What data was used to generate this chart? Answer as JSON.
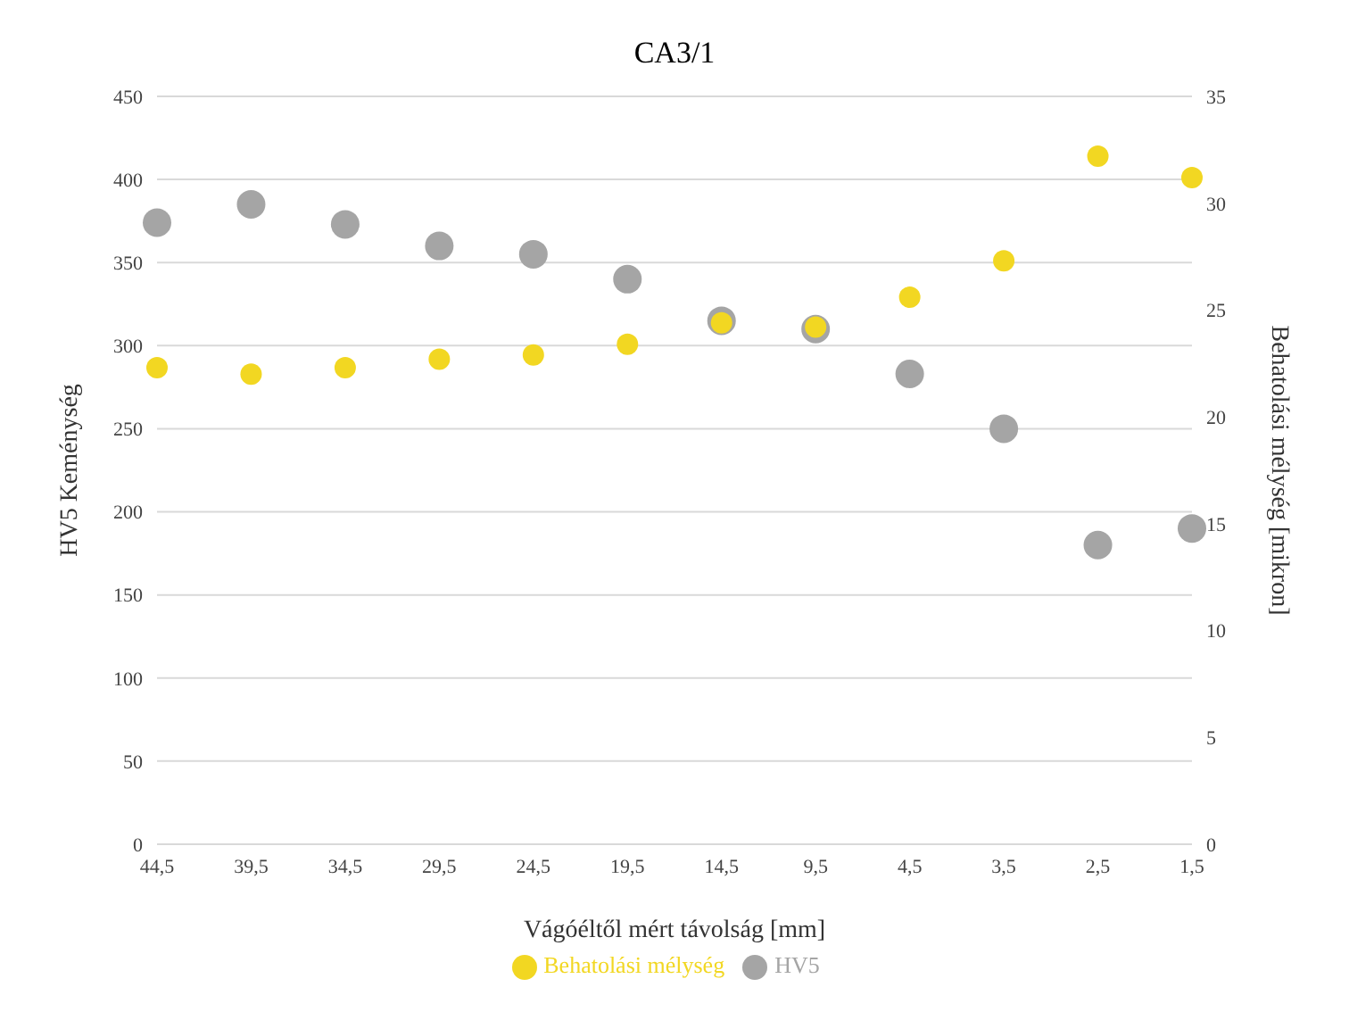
{
  "chart_data": {
    "type": "scatter",
    "title": "CA3/1",
    "xlabel": "Vágóéltől mért távolság [mm]",
    "ylabel": "HV5 Keménység",
    "y2label": "Behatolási mélység [mikron]",
    "categories": [
      "44,5",
      "39,5",
      "34,5",
      "29,5",
      "24,5",
      "19,5",
      "14,5",
      "9,5",
      "4,5",
      "3,5",
      "2,5",
      "1,5"
    ],
    "series": [
      {
        "name": "HV5",
        "color": "#a5a5a5",
        "values": [
          374,
          385,
          373,
          360,
          355,
          340,
          315,
          310,
          283,
          250,
          180,
          190
        ]
      },
      {
        "name": "Behatolási mélység",
        "color": "#f2d722",
        "axis": "y2",
        "values": [
          22.3,
          22,
          22.3,
          22.7,
          22.9,
          23.4,
          24.4,
          24.2,
          25.6,
          27.3,
          32.2,
          31.2
        ]
      }
    ],
    "ylim": [
      0,
      450
    ],
    "yticks": [
      0,
      50,
      100,
      150,
      200,
      250,
      300,
      350,
      400,
      450
    ],
    "y2lim": [
      0,
      35
    ],
    "y2ticks": [
      0,
      5,
      10,
      15,
      20,
      25,
      30,
      35
    ],
    "grid": "y",
    "legend": "bottom",
    "marker": "circle"
  }
}
